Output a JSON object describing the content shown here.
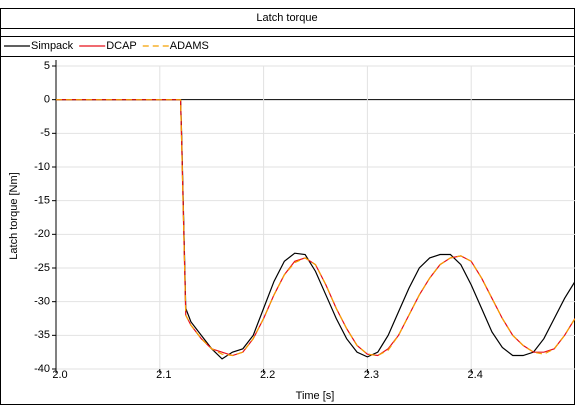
{
  "chart_data": {
    "type": "line",
    "title": "Latch torque",
    "x_label": "Time [s]",
    "y_label": "Latch torque [Nm]",
    "xlim": [
      2.0,
      2.5
    ],
    "ylim": [
      -40,
      5
    ],
    "xticks": [
      {
        "value": 2,
        "label": "2.0"
      },
      2.1,
      2.2,
      2.3,
      2.4
    ],
    "yticks": [
      5,
      0,
      -5,
      -10,
      -15,
      -20,
      -25,
      -30,
      -35,
      -40
    ],
    "grid": true,
    "legend": "top",
    "x": [
      2.0,
      2.05,
      2.1,
      2.12,
      2.121,
      2.125,
      2.13,
      2.14,
      2.15,
      2.16,
      2.17,
      2.18,
      2.19,
      2.2,
      2.21,
      2.22,
      2.23,
      2.24,
      2.25,
      2.26,
      2.27,
      2.28,
      2.29,
      2.3,
      2.31,
      2.32,
      2.33,
      2.34,
      2.35,
      2.36,
      2.37,
      2.38,
      2.39,
      2.4,
      2.41,
      2.42,
      2.43,
      2.44,
      2.45,
      2.46,
      2.47,
      2.48,
      2.49,
      2.5
    ],
    "series": [
      {
        "name": "Simpack",
        "color": "#000000",
        "dash": false,
        "values": [
          0,
          0,
          0,
          0,
          -5,
          -31,
          -33,
          -35,
          -37,
          -38.5,
          -37.5,
          -37,
          -35,
          -31,
          -27,
          -24,
          -22.8,
          -23,
          -25.5,
          -29,
          -32.5,
          -35.5,
          -37.5,
          -38.2,
          -37.5,
          -35,
          -31.5,
          -28,
          -25,
          -23.5,
          -23,
          -23,
          -24.5,
          -27.5,
          -31,
          -34.5,
          -36.8,
          -38,
          -38,
          -37.5,
          -35.5,
          -32.5,
          -29.5,
          -27
        ]
      },
      {
        "name": "DCAP",
        "color": "#e8101a",
        "dash": false,
        "values": [
          0,
          0,
          0,
          0,
          -6,
          -32,
          -33.5,
          -35.5,
          -37,
          -37.5,
          -38,
          -37.5,
          -35.5,
          -32.5,
          -29,
          -26,
          -24,
          -23.5,
          -24.5,
          -27.5,
          -31,
          -34,
          -36.5,
          -37.8,
          -38,
          -37,
          -35,
          -32,
          -29,
          -26.5,
          -24.5,
          -23.5,
          -23.2,
          -24,
          -26.5,
          -29.5,
          -32.5,
          -35,
          -36.5,
          -37.5,
          -37.5,
          -37,
          -35,
          -32.5
        ]
      },
      {
        "name": "ADAMS",
        "color": "#f5a000",
        "dash": true,
        "values": [
          0,
          0,
          0,
          0,
          -6,
          -32,
          -33.5,
          -35.5,
          -37,
          -37.8,
          -38,
          -37.5,
          -35.5,
          -32.5,
          -29,
          -26,
          -24.2,
          -23.5,
          -24.5,
          -27.5,
          -31,
          -34,
          -36.5,
          -37.8,
          -38,
          -37.2,
          -35,
          -32,
          -29,
          -26.5,
          -24.5,
          -23.5,
          -23.2,
          -24,
          -26.5,
          -29.5,
          -32.5,
          -35,
          -36.5,
          -37.5,
          -37.8,
          -37,
          -35,
          -32.5
        ]
      }
    ]
  }
}
